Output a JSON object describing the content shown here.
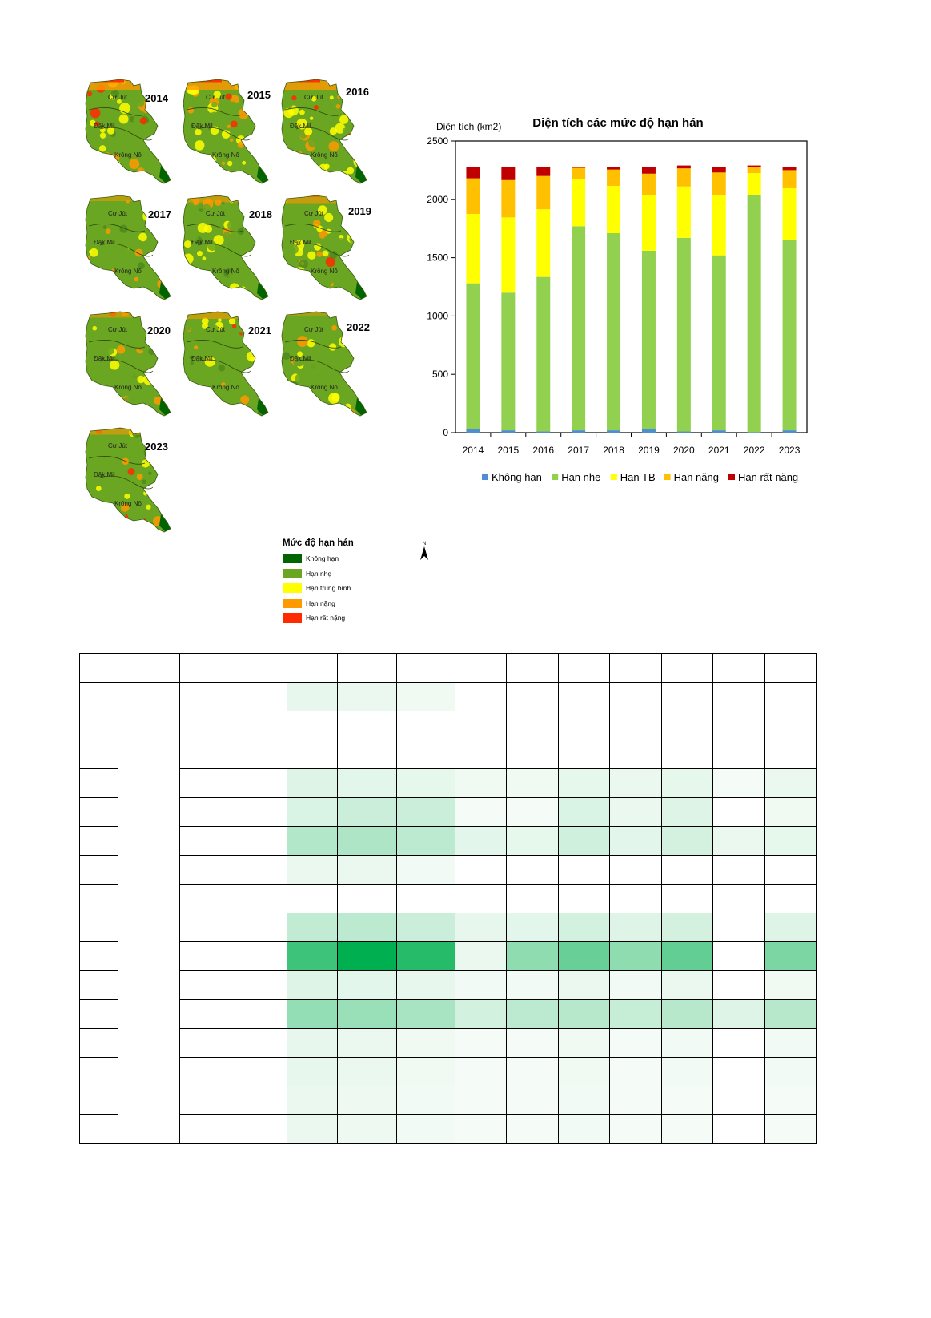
{
  "maps": {
    "years": [
      "2014",
      "2015",
      "2016",
      "2017",
      "2018",
      "2019",
      "2020",
      "2021",
      "2022",
      "2023"
    ],
    "place_labels": {
      "north": "Cư Jút",
      "middle": "Đăk Mil",
      "south": "Krông Nô"
    },
    "legend": {
      "title": "Mức độ hạn hán",
      "items": [
        {
          "label": "Không hạn",
          "color": "#006400"
        },
        {
          "label": "Hạn nhẹ",
          "color": "#6aa621"
        },
        {
          "label": "Hạn trung bình",
          "color": "#ffff00"
        },
        {
          "label": "Hạn nặng",
          "color": "#ff9900"
        },
        {
          "label": "Hạn rất nặng",
          "color": "#ff2a00"
        }
      ]
    },
    "north_label": "N"
  },
  "chart_data": {
    "type": "bar",
    "stacked": true,
    "title": "Diện tích các mức độ hạn hán",
    "ylabel": "Diện tích (km2)",
    "xlabel": "",
    "ylim": [
      0,
      2500
    ],
    "yticks": [
      0,
      500,
      1000,
      1500,
      2000,
      2500
    ],
    "grid": false,
    "legend_position": "bottom",
    "categories": [
      "2014",
      "2015",
      "2016",
      "2017",
      "2018",
      "2019",
      "2020",
      "2021",
      "2022",
      "2023"
    ],
    "series": [
      {
        "name": "Không hạn",
        "color": "#4f8fd1",
        "values": [
          30,
          20,
          10,
          20,
          20,
          30,
          10,
          20,
          5,
          20
        ]
      },
      {
        "name": "Hạn nhẹ",
        "color": "#92d050",
        "values": [
          1250,
          1180,
          1325,
          1750,
          1690,
          1530,
          1660,
          1500,
          2030,
          1630
        ]
      },
      {
        "name": "Hạn TB",
        "color": "#ffff00",
        "values": [
          595,
          645,
          580,
          405,
          405,
          475,
          440,
          520,
          190,
          445
        ]
      },
      {
        "name": "Hạn nặng",
        "color": "#ffc000",
        "values": [
          305,
          320,
          285,
          95,
          140,
          185,
          155,
          190,
          55,
          155
        ]
      },
      {
        "name": "Hạn rất nặng",
        "color": "#c00000",
        "values": [
          100,
          115,
          80,
          10,
          25,
          60,
          25,
          50,
          10,
          30
        ]
      }
    ]
  },
  "table": {
    "column_widths": [
      48,
      77,
      134,
      63,
      74,
      73,
      64,
      65,
      64,
      65,
      64,
      65,
      64
    ],
    "rows": [
      [
        0,
        0,
        0,
        0,
        0,
        0,
        0,
        0,
        0,
        0
      ],
      [
        0.06,
        0.05,
        0.03,
        0,
        0,
        0,
        0,
        0,
        0,
        0
      ],
      [
        0,
        0,
        0,
        0,
        0,
        0,
        0,
        0,
        0,
        0
      ],
      [
        0,
        0,
        0,
        0,
        0,
        0,
        0,
        0,
        0,
        0
      ],
      [
        0.1,
        0.08,
        0.07,
        0.03,
        0.03,
        0.07,
        0.05,
        0.07,
        0.01,
        0.05
      ],
      [
        0.12,
        0.18,
        0.18,
        0.01,
        0.01,
        0.12,
        0.05,
        0.1,
        0,
        0.03
      ],
      [
        0.28,
        0.3,
        0.24,
        0.08,
        0.07,
        0.16,
        0.08,
        0.14,
        0.05,
        0.07
      ],
      [
        0.05,
        0.05,
        0.02,
        0,
        0,
        0,
        0,
        0,
        0,
        0
      ],
      [
        0,
        0,
        0,
        0,
        0,
        0,
        0,
        0,
        0,
        0
      ],
      [
        0.22,
        0.24,
        0.18,
        0.06,
        0.08,
        0.15,
        0.1,
        0.14,
        0,
        0.1
      ],
      [
        0.75,
        1.0,
        0.85,
        0.05,
        0.42,
        0.58,
        0.42,
        0.6,
        0,
        0.5
      ],
      [
        0.1,
        0.08,
        0.06,
        0.02,
        0.02,
        0.05,
        0.02,
        0.05,
        0,
        0.03
      ],
      [
        0.4,
        0.38,
        0.32,
        0.15,
        0.24,
        0.26,
        0.2,
        0.26,
        0.1,
        0.26
      ],
      [
        0.06,
        0.05,
        0.03,
        0.01,
        0.01,
        0.03,
        0.01,
        0.02,
        0,
        0.02
      ],
      [
        0.06,
        0.05,
        0.03,
        0.01,
        0.01,
        0.03,
        0.01,
        0.02,
        0,
        0.02
      ],
      [
        0.05,
        0.04,
        0.02,
        0.01,
        0.01,
        0.02,
        0.01,
        0.01,
        0,
        0.01
      ],
      [
        0.05,
        0.04,
        0.02,
        0.01,
        0.01,
        0.02,
        0.01,
        0.01,
        0,
        0.01
      ]
    ],
    "group_spans": [
      {
        "start": 1,
        "span": 8
      },
      {
        "start": 9,
        "span": 8
      }
    ]
  }
}
